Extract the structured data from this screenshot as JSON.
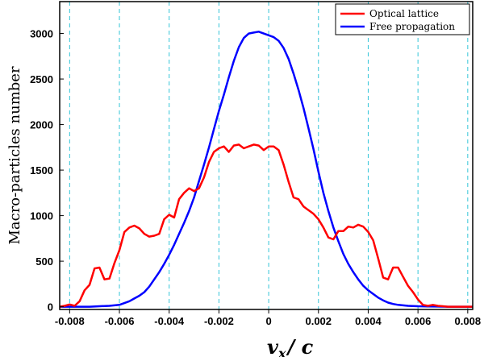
{
  "chart_data": {
    "type": "line",
    "title": "",
    "xlabel": "v_x / c",
    "xlabel_main": "v",
    "xlabel_sub": "x",
    "xlabel_rest": "/ c",
    "ylabel": "Macro-particles number",
    "xlim": [
      -0.0084,
      0.0082
    ],
    "ylim": [
      -30,
      3350
    ],
    "x_ticks": [
      -0.008,
      -0.006,
      -0.004,
      -0.002,
      0,
      0.002,
      0.004,
      0.006,
      0.008
    ],
    "x_tick_labels": [
      "-0.008",
      "-0.006",
      "-0.004",
      "-0.002",
      "0",
      "0.002",
      "0.004",
      "0.006",
      "0.008"
    ],
    "y_ticks": [
      0,
      500,
      1000,
      1500,
      2000,
      2500,
      3000
    ],
    "y_tick_labels": [
      "0",
      "500",
      "1000",
      "1500",
      "2000",
      "2500",
      "3000"
    ],
    "grid": "vertical dashed cyan lines at x ticks",
    "legend_position": "top-right",
    "colors": {
      "optical": "#ff0000",
      "free": "#0000ff",
      "grid": "#33c5d8"
    },
    "series": [
      {
        "name": "Optical lattice",
        "color": "#ff0000",
        "x": [
          -0.0084,
          -0.0082,
          -0.008,
          -0.0078,
          -0.0076,
          -0.0074,
          -0.0072,
          -0.007,
          -0.0068,
          -0.0066,
          -0.0064,
          -0.0062,
          -0.006,
          -0.0058,
          -0.0056,
          -0.0054,
          -0.0052,
          -0.005,
          -0.0048,
          -0.0046,
          -0.0044,
          -0.0042,
          -0.004,
          -0.0038,
          -0.0036,
          -0.0034,
          -0.0032,
          -0.003,
          -0.0028,
          -0.0026,
          -0.0024,
          -0.0022,
          -0.002,
          -0.0018,
          -0.0016,
          -0.0014,
          -0.0012,
          -0.001,
          -0.0008,
          -0.0006,
          -0.0004,
          -0.0002,
          0,
          0.0002,
          0.0004,
          0.0006,
          0.0008,
          0.001,
          0.0012,
          0.0014,
          0.0016,
          0.0018,
          0.002,
          0.0022,
          0.0024,
          0.0026,
          0.0028,
          0.003,
          0.0032,
          0.0034,
          0.0036,
          0.0038,
          0.004,
          0.0042,
          0.0044,
          0.0046,
          0.0048,
          0.005,
          0.0052,
          0.0054,
          0.0056,
          0.0058,
          0.006,
          0.0062,
          0.0064,
          0.0066,
          0.0068,
          0.007,
          0.0072,
          0.0074,
          0.0076,
          0.0078,
          0.008,
          0.0082
        ],
        "values": [
          0,
          10,
          25,
          10,
          60,
          180,
          240,
          420,
          430,
          300,
          310,
          480,
          620,
          820,
          870,
          890,
          860,
          800,
          770,
          780,
          800,
          960,
          1010,
          980,
          1180,
          1250,
          1300,
          1270,
          1300,
          1420,
          1590,
          1700,
          1740,
          1760,
          1700,
          1770,
          1780,
          1740,
          1760,
          1780,
          1770,
          1720,
          1760,
          1760,
          1720,
          1560,
          1370,
          1200,
          1180,
          1100,
          1060,
          1020,
          960,
          870,
          760,
          740,
          830,
          830,
          880,
          870,
          900,
          880,
          820,
          730,
          530,
          320,
          300,
          430,
          430,
          330,
          230,
          160,
          80,
          20,
          10,
          20,
          10,
          5,
          0,
          0,
          0,
          0,
          0,
          0
        ]
      },
      {
        "name": "Free propagation",
        "color": "#0000ff",
        "x": [
          -0.0084,
          -0.008,
          -0.0076,
          -0.0072,
          -0.0068,
          -0.0064,
          -0.006,
          -0.0058,
          -0.0056,
          -0.0054,
          -0.0052,
          -0.005,
          -0.0048,
          -0.0046,
          -0.0044,
          -0.0042,
          -0.004,
          -0.0038,
          -0.0036,
          -0.0034,
          -0.0032,
          -0.003,
          -0.0028,
          -0.0026,
          -0.0024,
          -0.0022,
          -0.002,
          -0.0018,
          -0.0016,
          -0.0014,
          -0.0012,
          -0.001,
          -0.0008,
          -0.0006,
          -0.0004,
          -0.0002,
          0,
          0.0002,
          0.0004,
          0.0006,
          0.0008,
          0.001,
          0.0012,
          0.0014,
          0.0016,
          0.0018,
          0.002,
          0.0022,
          0.0024,
          0.0026,
          0.0028,
          0.003,
          0.0032,
          0.0034,
          0.0036,
          0.0038,
          0.004,
          0.0042,
          0.0044,
          0.0046,
          0.0048,
          0.005,
          0.0052,
          0.0054,
          0.0056,
          0.0058,
          0.006,
          0.0064,
          0.0068,
          0.0072,
          0.0076,
          0.008,
          0.0082
        ],
        "values": [
          0,
          0,
          0,
          0,
          5,
          10,
          20,
          40,
          60,
          90,
          120,
          160,
          220,
          300,
          380,
          470,
          570,
          680,
          800,
          920,
          1050,
          1200,
          1380,
          1560,
          1750,
          1950,
          2150,
          2330,
          2520,
          2700,
          2850,
          2950,
          3000,
          3010,
          3020,
          3000,
          2980,
          2960,
          2920,
          2840,
          2720,
          2560,
          2380,
          2180,
          1960,
          1730,
          1480,
          1250,
          1050,
          870,
          720,
          580,
          470,
          380,
          300,
          230,
          180,
          140,
          100,
          70,
          45,
          30,
          20,
          15,
          10,
          8,
          5,
          3,
          2,
          0,
          0,
          0,
          0
        ]
      }
    ]
  }
}
